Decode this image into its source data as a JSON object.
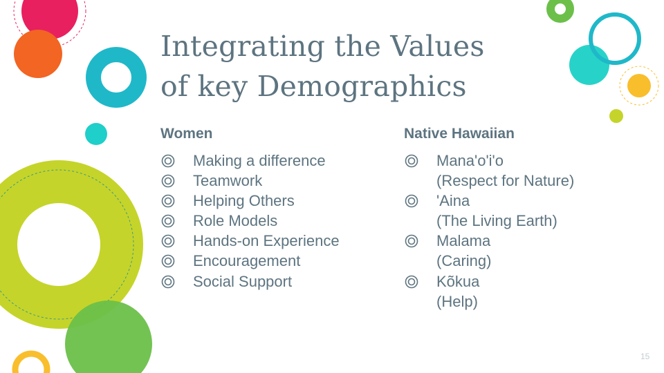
{
  "slide": {
    "title_line1": "Integrating the Values",
    "title_line2": "of key Demographics",
    "page_number": "15"
  },
  "columns": {
    "left": {
      "heading": "Women",
      "items": [
        "Making a difference",
        "Teamwork",
        "Helping Others",
        "Role Models",
        "Hands-on Experience",
        "Encouragement",
        "Social Support"
      ]
    },
    "right": {
      "heading": "Native Hawaiian",
      "items": [
        {
          "line1": "Mana'o'i'o",
          "line2": "(Respect for Nature)"
        },
        {
          "line1": "'Aina",
          "line2": "(The Living Earth)"
        },
        {
          "line1": "Malama",
          "line2": "(Caring)"
        },
        {
          "line1": "Kõkua",
          "line2": "(Help)"
        }
      ]
    }
  },
  "bullet_icon": "concentric-circle-bullet",
  "colors": {
    "text": "#5d7480",
    "pink": "#e8205f",
    "orange": "#f26522",
    "teal": "#1fb8c9",
    "turquoise": "#27d3c8",
    "lime": "#c5d42a",
    "green": "#6cc04a",
    "yellow": "#f9be2c"
  }
}
